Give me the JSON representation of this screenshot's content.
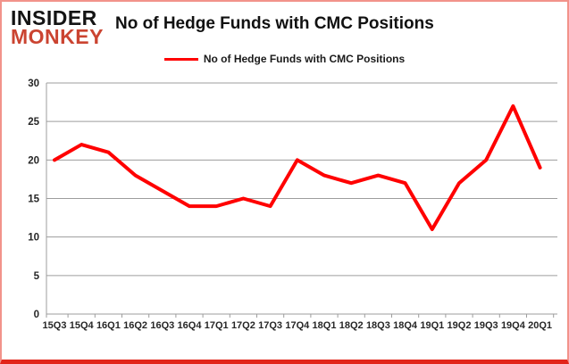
{
  "branding": {
    "logo_line1": "INSIDER",
    "logo_line2": "MONKEY",
    "logo_color": "#cb4431"
  },
  "header": {
    "title": "No of Hedge Funds with CMC Positions"
  },
  "legend": {
    "label": "No of Hedge Funds with CMC Positions",
    "line_color": "#ff0000"
  },
  "chart_data": {
    "type": "line",
    "title": "No of Hedge Funds with CMC Positions",
    "categories": [
      "15Q3",
      "15Q4",
      "16Q1",
      "16Q2",
      "16Q3",
      "16Q4",
      "17Q1",
      "17Q2",
      "17Q3",
      "17Q4",
      "18Q1",
      "18Q2",
      "18Q3",
      "18Q4",
      "19Q1",
      "19Q2",
      "19Q3",
      "19Q4",
      "20Q1"
    ],
    "series": [
      {
        "name": "No of Hedge Funds with CMC Positions",
        "color": "#ff0000",
        "values": [
          20,
          22,
          21,
          18,
          16,
          14,
          14,
          15,
          14,
          20,
          18,
          17,
          18,
          17,
          11,
          17,
          20,
          27,
          19
        ]
      }
    ],
    "xlabel": "",
    "ylabel": "",
    "ylim": [
      0,
      30
    ],
    "yticks": [
      0,
      5,
      10,
      15,
      20,
      25,
      30
    ],
    "grid": true,
    "legend_position": "top-center",
    "grid_color": "#9d9d9d",
    "tick_label_color": "#262626"
  }
}
